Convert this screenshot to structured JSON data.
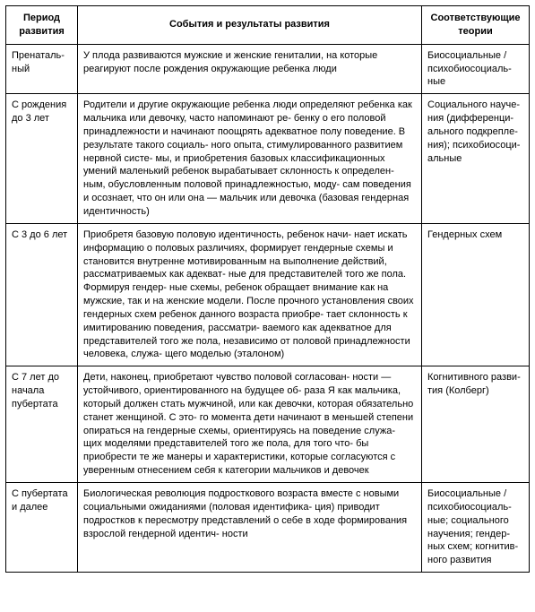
{
  "table": {
    "headers": {
      "period": "Период развития",
      "events": "События и результаты развития",
      "theory": "Соответствующие теории"
    },
    "rows": [
      {
        "period": "Пренаталь-\nный",
        "events": "У плода развиваются мужские и женские гениталии, на которые реагируют после рождения окружающие ребенка люди",
        "theory": "Биосоциальные / психобиосоциаль-\nные"
      },
      {
        "period": "С рождения до 3 лет",
        "events": "Родители и другие окружающие ребенка люди определяют ребенка как мальчика или девочку, часто напоминают ре-\nбенку о его половой принадлежности и начинают поощрять адекватное полу поведение. В результате такого социаль-\nного опыта, стимулированного развитием нервной систе-\nмы, и приобретения базовых классификационных умений маленький ребенок вырабатывает склонность к определен-\nным, обусловленным половой принадлежностью, моду-\nсам поведения и осознает, что он или она — мальчик или девочка (базовая гендерная идентичность)",
        "theory": "Социального науче-\nния (дифференци-\nального подкрепле-\nния); психобиосоци-\nальные"
      },
      {
        "period": "С 3 до 6 лет",
        "events": "Приобретя базовую половую идентичность, ребенок начи-\nнает искать информацию о половых различиях, формирует гендерные схемы и становится внутренне мотивированным на выполнение действий, рассматриваемых как адекват-\nные для представителей того же пола. Формируя гендер-\nные схемы, ребенок обращает внимание как на мужские, так и на женские модели. После прочного установления своих гендерных схем ребенок данного возраста приобре-\nтает склонность к имитированию поведения, рассматри-\nваемого как адекватное для представителей того же пола, независимо от половой принадлежности человека, служа-\nщего моделью (эталоном)",
        "theory": "Гендерных схем"
      },
      {
        "period": "С 7 лет до начала пубертата",
        "events": "Дети, наконец, приобретают чувство половой согласован-\nности — устойчивого, ориентированного на будущее об-\nраза Я как мальчика, который должен стать мужчиной, или как девочки, которая обязательно станет женщиной. С это-\nго момента дети начинают в меньшей степени опираться на гендерные схемы, ориентируясь на поведение служа-\nщих моделями представителей того же пола, для того что-\nбы приобрести те же манеры и характеристики, которые согласуются с уверенным отнесением себя к категории мальчиков и девочек",
        "theory": "Когнитивного разви-\nтия (Колберг)"
      },
      {
        "period": "С пубертата и далее",
        "events": "Биологическая революция подросткового возраста вместе с новыми социальными ожиданиями (половая идентифика-\nция) приводит подростков к пересмотру представлений о себе в ходе формирования взрослой гендерной идентич-\nности",
        "theory": "Биосоциальные / психобиосоциаль-\nные; социального научения; гендер-\nных схем; когнитив-\nного развития"
      }
    ]
  }
}
